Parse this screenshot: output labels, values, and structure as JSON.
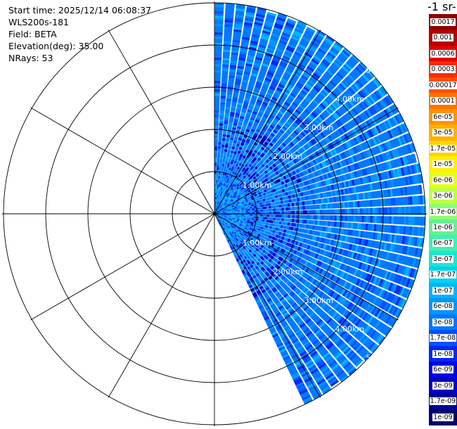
{
  "info": {
    "start_time": "Start time: 2025/12/14 06:08:37",
    "instrument": "WLS200s-181",
    "field": "Field: BETA",
    "elevation": "Elevation(deg): 35.00",
    "nrays": "NRays: 53"
  },
  "colorbar": {
    "title": "-1 sr-",
    "levels": [
      {
        "label": "0.0017",
        "color": "#8b0000"
      },
      {
        "label": "0.001",
        "color": "#b40000"
      },
      {
        "label": "0.0006",
        "color": "#e00000"
      },
      {
        "label": "0.0003",
        "color": "#ff2a00"
      },
      {
        "label": "0.00017",
        "color": "#ff5200"
      },
      {
        "label": "0.0001",
        "color": "#ff7300"
      },
      {
        "label": "6e-05",
        "color": "#ff9400"
      },
      {
        "label": "3e-05",
        "color": "#ffb000"
      },
      {
        "label": "1.7e-05",
        "color": "#ffd400"
      },
      {
        "label": "1e-05",
        "color": "#fff000"
      },
      {
        "label": "6e-06",
        "color": "#e6ff1a"
      },
      {
        "label": "3e-06",
        "color": "#bfff40"
      },
      {
        "label": "1.7e-06",
        "color": "#8cff6e"
      },
      {
        "label": "1e-06",
        "color": "#66f090"
      },
      {
        "label": "6e-07",
        "color": "#40f0b4"
      },
      {
        "label": "3e-07",
        "color": "#1ae6d2"
      },
      {
        "label": "1.7e-07",
        "color": "#00d2f0"
      },
      {
        "label": "1e-07",
        "color": "#00b4ff"
      },
      {
        "label": "6e-08",
        "color": "#0096ff"
      },
      {
        "label": "3e-08",
        "color": "#0078ff"
      },
      {
        "label": "1.7e-08",
        "color": "#0050ff"
      },
      {
        "label": "1e-08",
        "color": "#0028f0"
      },
      {
        "label": "6e-09",
        "color": "#0000e6"
      },
      {
        "label": "3e-09",
        "color": "#0000c0"
      },
      {
        "label": "1.7e-09",
        "color": "#000096"
      },
      {
        "label": "1e-09",
        "color": "#00006e"
      }
    ]
  },
  "chart_data": {
    "type": "heatmap",
    "subtype": "polar-ppi",
    "field": "BETA",
    "elevation_deg": 35.0,
    "nrays": 53,
    "azimuth_range_deg": [
      0,
      155
    ],
    "max_range_km": 5.0,
    "ring_labels_upper": [
      "1.00km",
      "2.00km",
      "3.00km",
      "4.00km",
      "5.00km"
    ],
    "ring_labels_lower": [
      "1.00km",
      "2.00km",
      "3.00km",
      "4.00km",
      "5.00km"
    ],
    "dominant_value_range": [
      "3e-09",
      "1.7e-07"
    ],
    "typical_value": "3e-08",
    "grid": true
  }
}
